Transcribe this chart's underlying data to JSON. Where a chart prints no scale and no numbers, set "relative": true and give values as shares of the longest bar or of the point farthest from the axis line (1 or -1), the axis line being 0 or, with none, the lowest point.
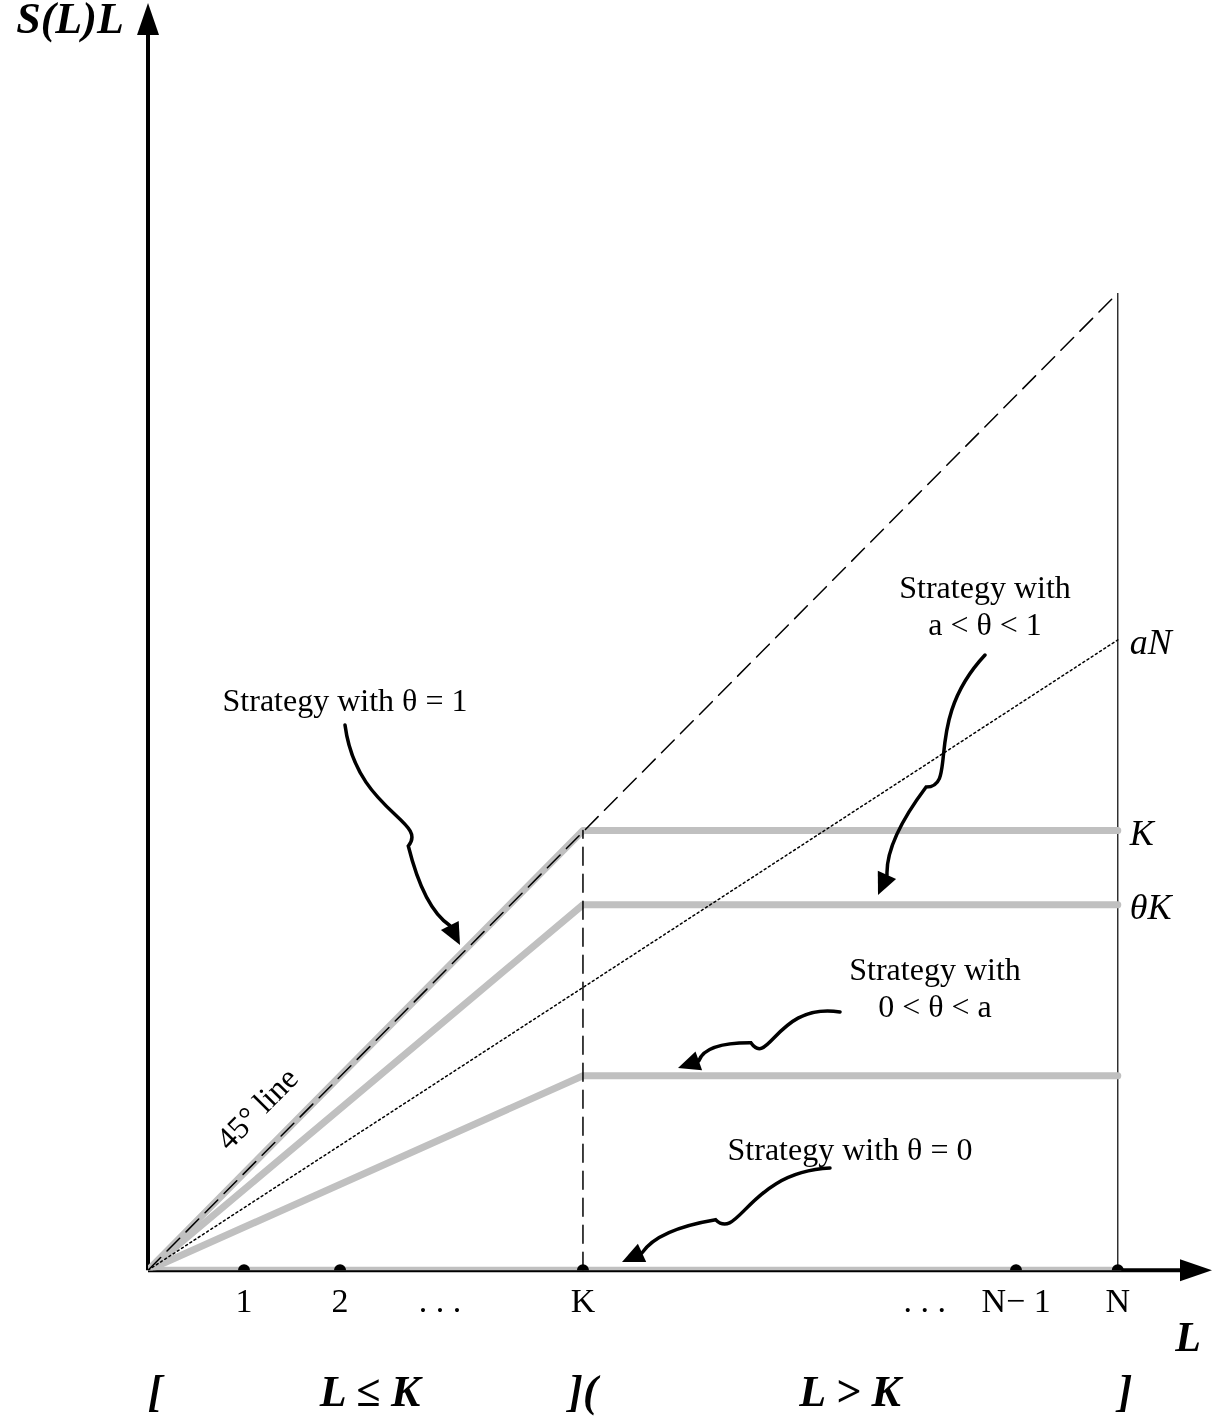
{
  "chart_data": {
    "type": "line",
    "xlabel": "L",
    "relative": true,
    "grid": false,
    "legend": false,
    "tick_labels": "x",
    "xlim": [
      0,
      10.8
    ],
    "xticks": [
      1,
      2,
      {
        "value": 3.04,
        "label": ". . ."
      },
      {
        "value": 4.53,
        "label": "K"
      },
      {
        "value": 8.09,
        "label": ". . ."
      },
      {
        "value": 9.04,
        "label": "N− 1"
      },
      {
        "value": 10.1,
        "label": "N"
      }
    ],
    "series": [
      {
        "type": "scatter",
        "color": "#000000",
        "marker": "circle",
        "x": [
          1,
          2,
          4.53,
          9.04,
          10.1
        ],
        "values": [
          0,
          0,
          0,
          0,
          0
        ]
      },
      {
        "name": "45° line",
        "color": "#000000",
        "line_style": "dashed",
        "marker": "none",
        "x": [
          0,
          10.1
        ],
        "values": [
          0,
          1
        ]
      },
      {
        "name": "aN",
        "color": "#000000",
        "line_style": "dotted",
        "marker": "none",
        "x": [
          0,
          10.1
        ],
        "values": [
          0,
          0.645
        ]
      },
      {
        "color": "#000000",
        "line_style": "dashed",
        "marker": "none",
        "x": [
          4.53,
          4.53
        ],
        "values": [
          0,
          0.45
        ]
      },
      {
        "name": "K",
        "color": "#c0c0c0",
        "line_style": "solid",
        "marker": "none",
        "x": [
          0,
          4.53,
          10.1
        ],
        "values": [
          0,
          0.45,
          0.45
        ]
      },
      {
        "name": "θK",
        "color": "#c0c0c0",
        "line_style": "solid",
        "marker": "none",
        "x": [
          0,
          4.53,
          10.1
        ],
        "values": [
          0,
          0.374,
          0.374
        ]
      },
      {
        "color": "#c0c0c0",
        "line_style": "solid",
        "marker": "none",
        "x": [
          0,
          4.53,
          10.1
        ],
        "values": [
          0,
          0.199,
          0.199
        ]
      },
      {
        "color": "#c0c0c0",
        "line_style": "solid",
        "marker": "none",
        "x": [
          0,
          10.1
        ],
        "values": [
          0,
          0
        ]
      }
    ],
    "ref_lines": [
      {
        "axis": "x",
        "value": 10.1,
        "color": "#000000",
        "line_style": "solid"
      }
    ],
    "annotations": [
      "Strategy with θ = 1",
      "Strategy with\na < θ < 1",
      "Strategy with\n0 < θ < a",
      "Strategy with θ = 0",
      "[",
      "L ≤ K",
      "](",
      "L > K",
      "]",
      "S(L)L"
    ]
  }
}
